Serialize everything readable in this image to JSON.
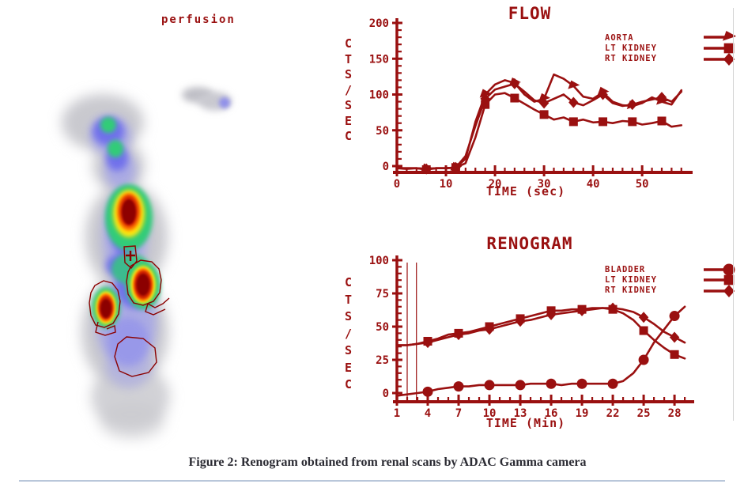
{
  "perfusion": {
    "label": "perfusion"
  },
  "caption": "Figure 2: Renogram obtained from renal scans by ADAC Gamma camera",
  "colors": {
    "chart_red": "#9a1010",
    "roi_outline": "#8b0000",
    "caption_text": "#2b2b33",
    "divider_blue": "#b9c7da",
    "border_gray": "#d2d2d2"
  },
  "chart_data": [
    {
      "id": "flow",
      "type": "line",
      "title": "FLOW",
      "ylabel": "CTS/SEC",
      "xlabel": "TIME (sec)",
      "ylim": [
        0,
        200
      ],
      "xlim": [
        0,
        59
      ],
      "yticks": [
        0,
        50,
        100,
        150,
        200
      ],
      "yminor_step": 10,
      "xticks": [
        0,
        10,
        20,
        30,
        40,
        50
      ],
      "xminor_step": 2,
      "grid": false,
      "legend_position": "top-right",
      "legend": [
        "AORTA",
        "LT KIDNEY",
        "RT KIDNEY"
      ],
      "series": [
        {
          "name": "AORTA",
          "marker": "arrow",
          "marker_offset": 3,
          "marker_every": 3,
          "x": [
            0,
            2,
            4,
            6,
            8,
            10,
            12,
            14,
            16,
            18,
            20,
            22,
            24,
            26,
            28,
            30,
            32,
            34,
            36,
            38,
            40,
            42,
            44,
            46,
            48,
            50,
            52,
            54,
            56,
            58
          ],
          "y": [
            -3,
            -3,
            -3,
            -4,
            -3,
            -3,
            -2,
            10,
            62,
            100,
            114,
            120,
            116,
            100,
            90,
            94,
            128,
            122,
            112,
            97,
            94,
            103,
            90,
            85,
            84,
            88,
            96,
            90,
            86,
            106
          ]
        },
        {
          "name": "LT KIDNEY",
          "marker": "square",
          "marker_offset": 3,
          "marker_every": 3,
          "x": [
            0,
            2,
            4,
            6,
            8,
            10,
            12,
            14,
            16,
            18,
            20,
            22,
            24,
            26,
            28,
            30,
            32,
            34,
            36,
            38,
            40,
            42,
            44,
            46,
            48,
            50,
            52,
            54,
            56,
            58
          ],
          "y": [
            -3,
            -4,
            -3,
            -5,
            -3,
            -3,
            -2,
            4,
            40,
            86,
            100,
            102,
            95,
            87,
            79,
            72,
            65,
            68,
            62,
            65,
            61,
            62,
            60,
            63,
            62,
            58,
            60,
            63,
            55,
            57
          ]
        },
        {
          "name": "RT KIDNEY",
          "marker": "diamond",
          "marker_offset": 3,
          "marker_every": 3,
          "x": [
            0,
            2,
            4,
            6,
            8,
            10,
            12,
            14,
            16,
            18,
            20,
            22,
            24,
            26,
            28,
            30,
            32,
            34,
            36,
            38,
            40,
            42,
            44,
            46,
            48,
            50,
            52,
            54,
            56,
            58
          ],
          "y": [
            -3,
            -3,
            -3,
            -4,
            -3,
            -3,
            -2,
            14,
            56,
            94,
            107,
            111,
            115,
            104,
            92,
            88,
            94,
            100,
            89,
            85,
            92,
            100,
            88,
            84,
            86,
            90,
            93,
            96,
            90,
            104
          ]
        }
      ]
    },
    {
      "id": "renogram",
      "type": "line",
      "title": "RENOGRAM",
      "ylabel": "CTS/SEC",
      "xlabel": "TIME (Min)",
      "ylim": [
        0,
        100
      ],
      "xlim": [
        1,
        29.3
      ],
      "yticks": [
        0,
        25,
        50,
        75,
        100
      ],
      "yminor_step": 5,
      "xticks": [
        1,
        4,
        7,
        10,
        13,
        16,
        19,
        22,
        25,
        28
      ],
      "xminor_step": 1,
      "grid": false,
      "legend_position": "top-right",
      "legend": [
        "BLADDER",
        "LT KIDNEY",
        "RT KIDNEY"
      ],
      "cursor_lines_x": [
        2,
        2.9
      ],
      "series": [
        {
          "name": "BLADDER",
          "marker": "circle",
          "marker_offset": 3,
          "marker_every": 3,
          "x": [
            1,
            2,
            3,
            4,
            5,
            6,
            7,
            8,
            9,
            10,
            11,
            12,
            13,
            14,
            15,
            16,
            17,
            18,
            19,
            20,
            21,
            22,
            23,
            24,
            25,
            26,
            27,
            28,
            29
          ],
          "y": [
            -2,
            -1,
            0,
            1,
            3,
            4,
            5,
            5,
            6,
            6,
            6,
            6,
            6,
            7,
            7,
            7,
            6,
            7,
            7,
            7,
            7,
            7,
            9,
            15,
            25,
            38,
            48,
            58,
            65
          ]
        },
        {
          "name": "LT KIDNEY",
          "marker": "square",
          "marker_offset": 3,
          "marker_every": 3,
          "x": [
            1,
            2,
            3,
            4,
            5,
            6,
            7,
            8,
            9,
            10,
            11,
            12,
            13,
            14,
            15,
            16,
            17,
            18,
            19,
            20,
            21,
            22,
            23,
            24,
            25,
            26,
            27,
            28,
            29
          ],
          "y": [
            36,
            36,
            37,
            39,
            41,
            44,
            45,
            46,
            48,
            50,
            52,
            54,
            56,
            58,
            60,
            62,
            62,
            63,
            63,
            64,
            64,
            63,
            60,
            55,
            47,
            40,
            34,
            29,
            26
          ]
        },
        {
          "name": "RT KIDNEY",
          "marker": "diamond",
          "marker_offset": 3,
          "marker_every": 3,
          "x": [
            1,
            2,
            3,
            4,
            5,
            6,
            7,
            8,
            9,
            10,
            11,
            12,
            13,
            14,
            15,
            16,
            17,
            18,
            19,
            20,
            21,
            22,
            23,
            24,
            25,
            26,
            27,
            28,
            29
          ],
          "y": [
            36,
            36,
            37,
            38,
            40,
            42,
            44,
            45,
            47,
            48,
            50,
            52,
            54,
            55,
            57,
            59,
            60,
            61,
            62,
            63,
            64,
            64,
            63,
            61,
            57,
            52,
            46,
            42,
            38
          ]
        }
      ]
    }
  ]
}
